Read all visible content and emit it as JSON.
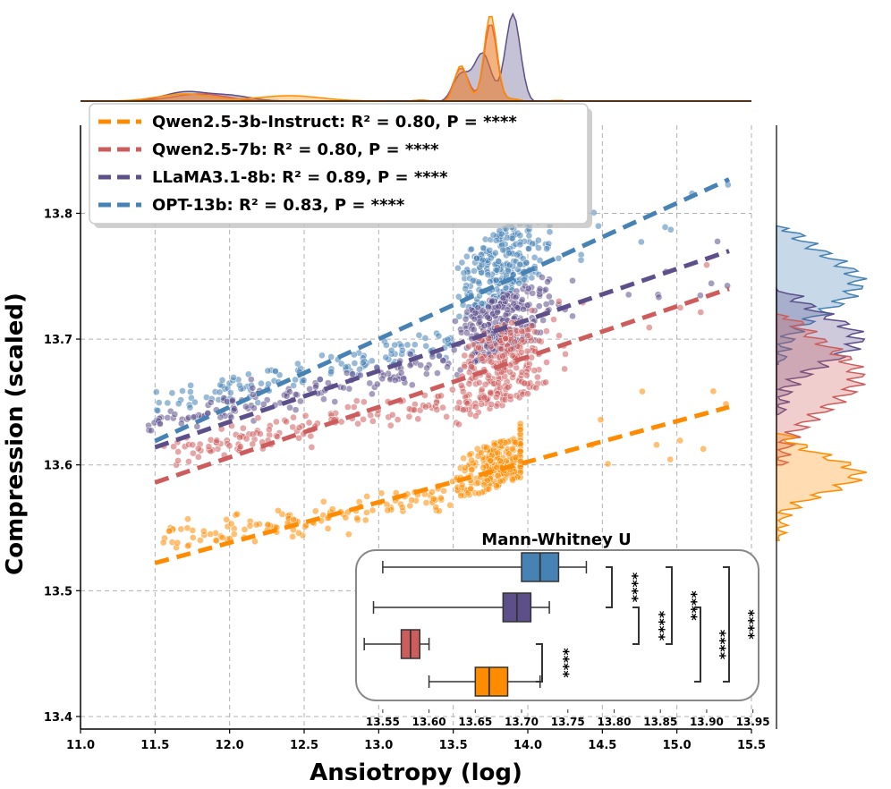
{
  "chart_data": {
    "type": "scatter",
    "xlabel": "Ansiotropy (log)",
    "ylabel": "Compression (scaled)",
    "xlim": [
      11.0,
      15.5
    ],
    "ylim": [
      13.39,
      13.87
    ],
    "xticks": [
      "11.0",
      "11.5",
      "12.0",
      "12.5",
      "13.0",
      "13.5",
      "14.0",
      "14.5",
      "15.0",
      "15.5"
    ],
    "yticks": [
      "13.4",
      "13.5",
      "13.6",
      "13.7",
      "13.8"
    ],
    "grid": true,
    "legend_position": "top-left",
    "series": [
      {
        "name": "Qwen2.5-3b-Instruct",
        "label": "Qwen2.5-3b-Instruct: R² = 0.80, P = ****",
        "color": "#ff8c00",
        "fit_line": {
          "x": [
            11.5,
            15.35
          ],
          "y": [
            13.522,
            13.646
          ]
        },
        "cluster_x": [
          13.5,
          13.95
        ],
        "cluster_y": [
          13.57,
          13.615
        ],
        "tail_x": [
          11.55,
          13.5
        ],
        "tail_y_start": [
          13.54,
          13.575
        ]
      },
      {
        "name": "Qwen2.5-7b",
        "label": "Qwen2.5-7b: R² = 0.80, P = ****",
        "color": "#cd5c5c",
        "fit_line": {
          "x": [
            11.5,
            15.35
          ],
          "y": [
            13.586,
            13.74
          ]
        },
        "cluster_x": [
          13.5,
          14.3
        ],
        "cluster_y": [
          13.63,
          13.71
        ],
        "tail_x": [
          11.55,
          13.5
        ],
        "tail_y_start": [
          13.61,
          13.65
        ]
      },
      {
        "name": "LLaMA3.1-8b",
        "label": "LLaMA3.1-8b: R² = 0.89, P = ****",
        "color": "#5c4f8a",
        "fit_line": {
          "x": [
            11.5,
            15.35
          ],
          "y": [
            13.614,
            13.77
          ]
        },
        "cluster_x": [
          13.5,
          14.3
        ],
        "cluster_y": [
          13.67,
          13.73
        ],
        "tail_x": [
          11.45,
          13.5
        ],
        "tail_y_start": [
          13.632,
          13.68
        ]
      },
      {
        "name": "OPT-13b",
        "label": "OPT-13b: R² = 0.83, P = ****",
        "color": "#4682b4",
        "fit_line": {
          "x": [
            11.5,
            15.35
          ],
          "y": [
            13.619,
            13.827
          ]
        },
        "cluster_x": [
          13.5,
          14.25
        ],
        "cluster_y": [
          13.71,
          13.78
        ],
        "tail_x": [
          11.5,
          13.5
        ],
        "tail_y_start": [
          13.645,
          13.7
        ]
      }
    ],
    "inset": {
      "title": "Mann-Whitney U",
      "xlim": [
        13.525,
        13.96
      ],
      "xticks": [
        "13.55",
        "13.60",
        "13.65",
        "13.70",
        "13.75",
        "13.80",
        "13.85",
        "13.90",
        "13.95"
      ],
      "boxes": [
        {
          "name": "OPT-13b",
          "color": "#4682b4",
          "whislo": 13.55,
          "q1": 13.7,
          "med": 13.72,
          "q3": 13.74,
          "whishi": 13.77
        },
        {
          "name": "LLaMA3.1-8b",
          "color": "#5c4f8a",
          "whislo": 13.54,
          "q1": 13.68,
          "med": 13.695,
          "q3": 13.71,
          "whishi": 13.73
        },
        {
          "name": "Qwen2.5-7b",
          "color": "#cd5c5c",
          "whislo": 13.53,
          "q1": 13.57,
          "med": 13.58,
          "q3": 13.59,
          "whishi": 13.6
        },
        {
          "name": "Qwen2.5-3b-Instruct",
          "color": "#ff8c00",
          "whislo": 13.6,
          "q1": 13.65,
          "med": 13.665,
          "q3": 13.685,
          "whishi": 13.72
        }
      ],
      "significance": [
        "****",
        "****",
        "****",
        "****",
        "****",
        "****"
      ]
    }
  }
}
